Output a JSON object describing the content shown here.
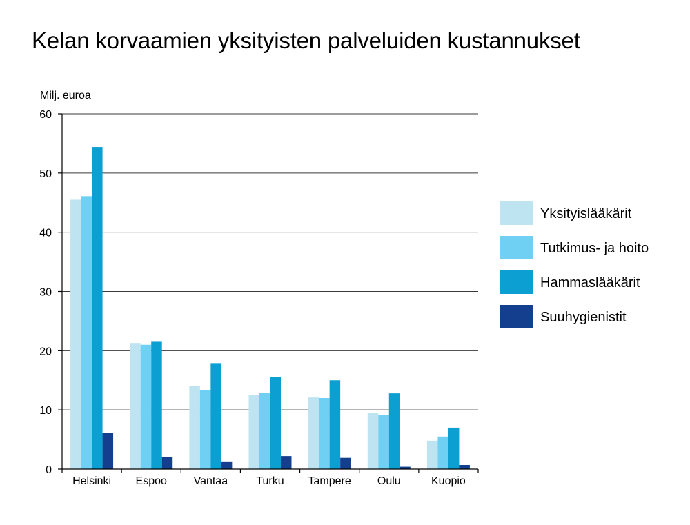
{
  "chart_data": {
    "type": "bar",
    "title": "Kelan korvaamien yksityisten palveluiden kustannukset",
    "ylabel": "Milj. euroa",
    "xlabel": "",
    "ylim": [
      0,
      60
    ],
    "yticks": [
      0,
      10,
      20,
      30,
      40,
      50,
      60
    ],
    "grid": true,
    "legend_position": "right",
    "categories": [
      "Helsinki",
      "Espoo",
      "Vantaa",
      "Turku",
      "Tampere",
      "Oulu",
      "Kuopio"
    ],
    "series": [
      {
        "name": "Yksityislääkärit",
        "color": "#bde4f0",
        "values": [
          45.5,
          21.3,
          14.1,
          12.5,
          12.1,
          9.5,
          4.8
        ]
      },
      {
        "name": "Tutkimus- ja hoito",
        "color": "#6fd0f4",
        "values": [
          46.1,
          21.0,
          13.4,
          12.9,
          12.0,
          9.2,
          5.5
        ]
      },
      {
        "name": "Hammaslääkärit",
        "color": "#0c9fd1",
        "values": [
          54.4,
          21.5,
          17.9,
          15.6,
          15.0,
          12.8,
          7.0
        ]
      },
      {
        "name": "Suuhygienistit",
        "color": "#133f8e",
        "values": [
          6.1,
          2.1,
          1.3,
          2.2,
          1.9,
          0.4,
          0.7
        ]
      }
    ]
  }
}
